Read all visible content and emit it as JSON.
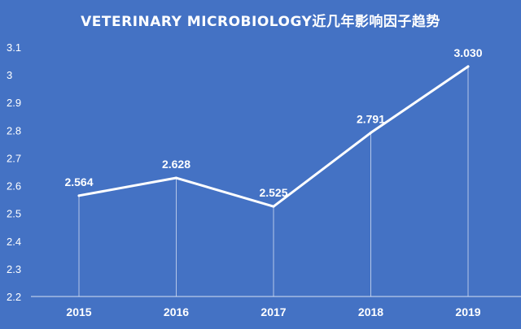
{
  "title": "VETERINARY MICROBIOLOGY近几年影响因子趋势",
  "colors": {
    "background": "#4472c4",
    "line": "#ffffff",
    "text": "#ffffff",
    "drop_line": "#c9d6ee",
    "axis": "#d6e0f2"
  },
  "chart_data": {
    "type": "line",
    "title": "VETERINARY MICROBIOLOGY近几年影响因子趋势",
    "xlabel": "",
    "ylabel": "",
    "categories": [
      "2015",
      "2016",
      "2017",
      "2018",
      "2019"
    ],
    "values": [
      2.564,
      2.628,
      2.525,
      2.791,
      3.03
    ],
    "data_labels": [
      "2.564",
      "2.628",
      "2.525",
      "2.791",
      "3.030"
    ],
    "ylim": [
      2.2,
      3.1
    ],
    "yticks": [
      2.2,
      2.3,
      2.4,
      2.5,
      2.6,
      2.7,
      2.8,
      2.9,
      3.0,
      3.1
    ],
    "ytick_labels": [
      "2.2",
      "2.3",
      "2.4",
      "2.5",
      "2.6",
      "2.7",
      "2.8",
      "2.9",
      "3",
      "3.1"
    ],
    "grid": false,
    "drop_lines": true,
    "legend": "none"
  }
}
